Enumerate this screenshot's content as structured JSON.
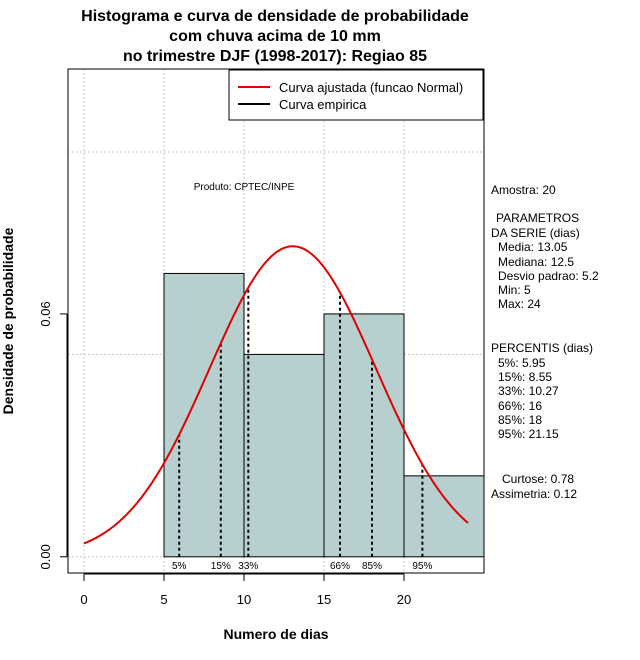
{
  "chart_data": {
    "type": "bar",
    "title_lines": [
      "Histograma e curva de densidade de probabilidade",
      "com chuva acima de 10 mm",
      "no trimestre DJF (1998-2017): Regiao 85"
    ],
    "xlabel": "Numero de dias",
    "ylabel": "Densidade de probabilidade",
    "xlim": [
      -1,
      25
    ],
    "ylim": [
      -0.004,
      0.1205
    ],
    "x_ticks": [
      0,
      5,
      10,
      15,
      20
    ],
    "x_tick_labels": [
      "0",
      "5",
      "10",
      "15",
      "20"
    ],
    "y_ticks": [
      0.0,
      0.06
    ],
    "y_tick_labels": [
      "0.00",
      "0.06"
    ],
    "grid": true,
    "grid_x": [
      0,
      5,
      10,
      15,
      20
    ],
    "grid_y": [
      0.0,
      0.05,
      0.1
    ],
    "colors": {
      "bars": "#b7cfcf",
      "fit_curve": "#e00000",
      "empirical": "#000000",
      "grid": "#c8c8c8"
    },
    "histogram": [
      {
        "x0": 5,
        "x1": 10,
        "density": 0.07
      },
      {
        "x0": 10,
        "x1": 15,
        "density": 0.05
      },
      {
        "x0": 15,
        "x1": 20,
        "density": 0.06
      },
      {
        "x0": 20,
        "x1": 25,
        "density": 0.02
      }
    ],
    "normal_fit": {
      "mean": 13.05,
      "sd": 5.2,
      "x_from": 0,
      "x_to": 24
    },
    "percentile_lines": [
      {
        "label": "5%",
        "x": 5.95
      },
      {
        "label": "15%",
        "x": 8.55
      },
      {
        "label": "33%",
        "x": 10.27
      },
      {
        "label": "66%",
        "x": 16
      },
      {
        "label": "85%",
        "x": 18
      },
      {
        "label": "95%",
        "x": 21.15
      }
    ],
    "legend": {
      "position": "top-right",
      "entries": [
        {
          "label": "Curva ajustada (funcao Normal)",
          "color": "#e00000"
        },
        {
          "label": "Curva empirica",
          "color": "#000000"
        }
      ]
    },
    "annotation": "Produto: CPTEC/INPE"
  },
  "stats_panel": {
    "sample": "Amostra: 20",
    "params_title_1": "PARAMETROS",
    "params_title_2": "DA SERIE (dias)",
    "params": [
      "Media: 13.05",
      "Mediana: 12.5",
      "Desvio padrao: 5.2",
      "Min: 5",
      "Max: 24"
    ],
    "percentis_title": "PERCENTIS (dias)",
    "percentis": [
      "5%: 5.95",
      "15%: 8.55",
      "33%: 10.27",
      "66%: 16",
      "85%: 18",
      "95%: 21.15"
    ],
    "curtose": "Curtose: 0.78",
    "assimetria": "Assimetria: 0.12"
  }
}
